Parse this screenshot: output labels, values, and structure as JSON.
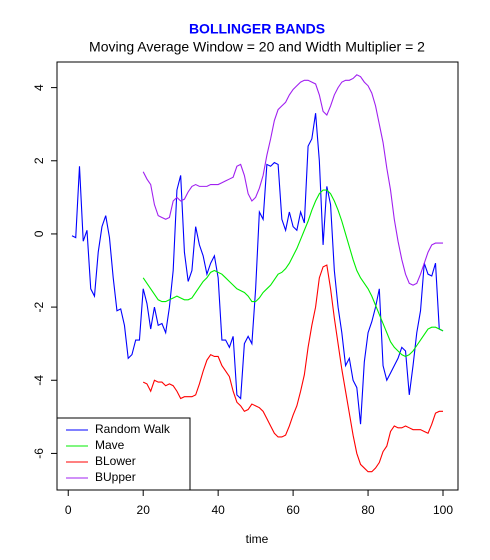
{
  "chart_data": {
    "type": "line",
    "title": "BOLLINGER BANDS",
    "subtitle": "Moving Average Window = 20 and Width Multiplier = 2",
    "x_label": "time",
    "x": [
      1,
      2,
      3,
      4,
      5,
      6,
      7,
      8,
      9,
      10,
      11,
      12,
      13,
      14,
      15,
      16,
      17,
      18,
      19,
      20,
      21,
      22,
      23,
      24,
      25,
      26,
      27,
      28,
      29,
      30,
      31,
      32,
      33,
      34,
      35,
      36,
      37,
      38,
      39,
      40,
      41,
      42,
      43,
      44,
      45,
      46,
      47,
      48,
      49,
      50,
      51,
      52,
      53,
      54,
      55,
      56,
      57,
      58,
      59,
      60,
      61,
      62,
      63,
      64,
      65,
      66,
      67,
      68,
      69,
      70,
      71,
      72,
      73,
      74,
      75,
      76,
      77,
      78,
      79,
      80,
      81,
      82,
      83,
      84,
      85,
      86,
      87,
      88,
      89,
      90,
      91,
      92,
      93,
      94,
      95,
      96,
      97,
      98,
      99,
      100
    ],
    "series": [
      {
        "name": "Random Walk",
        "color": "#0000ff",
        "values": [
          -0.05,
          -0.1,
          1.85,
          -0.2,
          0.1,
          -1.5,
          -1.7,
          -0.5,
          0.2,
          0.5,
          -0.1,
          -1.2,
          -2.1,
          -2.05,
          -2.5,
          -3.4,
          -3.3,
          -2.9,
          -2.9,
          -1.5,
          -1.9,
          -2.6,
          -2.0,
          -2.5,
          -2.45,
          -2.7,
          -2.0,
          -1.0,
          1.2,
          1.6,
          -0.5,
          -1.3,
          -1.0,
          0.2,
          -0.3,
          -0.6,
          -1.1,
          -0.8,
          -0.6,
          -1.2,
          -2.9,
          -2.9,
          -3.1,
          -2.8,
          -4.4,
          -4.5,
          -3.0,
          -2.8,
          -3.0,
          -1.5,
          0.6,
          0.4,
          1.9,
          1.85,
          1.95,
          1.9,
          0.4,
          0.1,
          0.6,
          0.2,
          0.1,
          0.6,
          0.3,
          2.4,
          2.6,
          3.3,
          2.0,
          -0.3,
          1.3,
          0.8,
          -1.0,
          -2.0,
          -2.7,
          -3.6,
          -3.4,
          -4.0,
          -4.2,
          -5.2,
          -3.5,
          -2.7,
          -2.4,
          -2.0,
          -1.5,
          -3.6,
          -4.0,
          -3.8,
          -3.6,
          -3.4,
          -3.1,
          -3.2,
          -4.4,
          -3.6,
          -2.7,
          -2.1,
          -0.8,
          -1.1,
          -1.15,
          -0.8,
          -2.6,
          -2.65
        ]
      },
      {
        "name": "Mave",
        "color": "#00ee00",
        "values": [
          null,
          null,
          null,
          null,
          null,
          null,
          null,
          null,
          null,
          null,
          null,
          null,
          null,
          null,
          null,
          null,
          null,
          null,
          null,
          -1.2,
          -1.35,
          -1.5,
          -1.65,
          -1.8,
          -1.85,
          -1.85,
          -1.8,
          -1.75,
          -1.7,
          -1.75,
          -1.8,
          -1.8,
          -1.75,
          -1.6,
          -1.45,
          -1.3,
          -1.2,
          -1.05,
          -1.0,
          -1.05,
          -1.1,
          -1.2,
          -1.3,
          -1.4,
          -1.5,
          -1.55,
          -1.6,
          -1.7,
          -1.85,
          -1.85,
          -1.75,
          -1.6,
          -1.5,
          -1.4,
          -1.25,
          -1.1,
          -1.05,
          -0.95,
          -0.8,
          -0.6,
          -0.4,
          -0.15,
          0.1,
          0.35,
          0.65,
          0.9,
          1.1,
          1.2,
          1.2,
          1.1,
          0.9,
          0.65,
          0.35,
          0.0,
          -0.35,
          -0.7,
          -1.0,
          -1.2,
          -1.35,
          -1.5,
          -1.7,
          -1.95,
          -2.2,
          -2.45,
          -2.7,
          -2.95,
          -3.1,
          -3.2,
          -3.3,
          -3.35,
          -3.3,
          -3.2,
          -3.05,
          -2.9,
          -2.75,
          -2.6,
          -2.55,
          -2.55,
          -2.6,
          -2.65
        ]
      },
      {
        "name": "BLower",
        "color": "#ff0000",
        "values": [
          null,
          null,
          null,
          null,
          null,
          null,
          null,
          null,
          null,
          null,
          null,
          null,
          null,
          null,
          null,
          null,
          null,
          null,
          null,
          -4.05,
          -4.1,
          -4.3,
          -4.0,
          -4.05,
          -4.05,
          -4.15,
          -4.1,
          -4.15,
          -4.3,
          -4.5,
          -4.45,
          -4.45,
          -4.45,
          -4.4,
          -4.1,
          -3.75,
          -3.45,
          -3.3,
          -3.35,
          -3.35,
          -3.6,
          -3.75,
          -3.9,
          -4.3,
          -4.6,
          -4.7,
          -4.85,
          -4.8,
          -4.65,
          -4.7,
          -4.75,
          -4.85,
          -5.05,
          -5.25,
          -5.45,
          -5.55,
          -5.55,
          -5.5,
          -5.25,
          -4.95,
          -4.7,
          -4.3,
          -3.85,
          -3.1,
          -2.5,
          -2.0,
          -1.2,
          -0.9,
          -0.85,
          -1.5,
          -2.3,
          -3.0,
          -3.7,
          -4.3,
          -4.9,
          -5.5,
          -6.0,
          -6.3,
          -6.4,
          -6.5,
          -6.5,
          -6.4,
          -6.25,
          -5.95,
          -5.8,
          -5.4,
          -5.25,
          -5.3,
          -5.3,
          -5.25,
          -5.3,
          -5.35,
          -5.35,
          -5.35,
          -5.4,
          -5.45,
          -5.2,
          -4.9,
          -4.85,
          -4.85
        ]
      },
      {
        "name": "BUpper",
        "color": "#a020f0",
        "values": [
          null,
          null,
          null,
          null,
          null,
          null,
          null,
          null,
          null,
          null,
          null,
          null,
          null,
          null,
          null,
          null,
          null,
          null,
          null,
          1.7,
          1.5,
          1.35,
          0.8,
          0.5,
          0.45,
          0.4,
          0.45,
          0.9,
          1.0,
          0.9,
          0.95,
          1.15,
          1.3,
          1.35,
          1.3,
          1.3,
          1.3,
          1.35,
          1.35,
          1.35,
          1.4,
          1.45,
          1.5,
          1.55,
          1.85,
          1.9,
          1.6,
          1.1,
          0.9,
          1.0,
          1.25,
          1.6,
          2.15,
          2.6,
          3.1,
          3.4,
          3.5,
          3.6,
          3.8,
          3.95,
          4.05,
          4.15,
          4.2,
          4.2,
          4.15,
          4.1,
          3.8,
          3.35,
          3.25,
          3.5,
          3.8,
          4.0,
          4.15,
          4.2,
          4.2,
          4.25,
          4.35,
          4.3,
          4.15,
          4.05,
          3.85,
          3.5,
          3.0,
          2.5,
          1.8,
          1.2,
          0.4,
          -0.2,
          -0.7,
          -1.1,
          -1.35,
          -1.4,
          -1.35,
          -1.1,
          -0.8,
          -0.5,
          -0.3,
          -0.25,
          -0.25,
          -0.25
        ]
      }
    ],
    "xlim": [
      -3,
      104
    ],
    "xticks": [
      0,
      20,
      40,
      60,
      80,
      100
    ],
    "ylim": [
      -7,
      4.7
    ],
    "yticks": [
      -6,
      -4,
      -2,
      0,
      2,
      4
    ],
    "legend": "bottom-left"
  }
}
